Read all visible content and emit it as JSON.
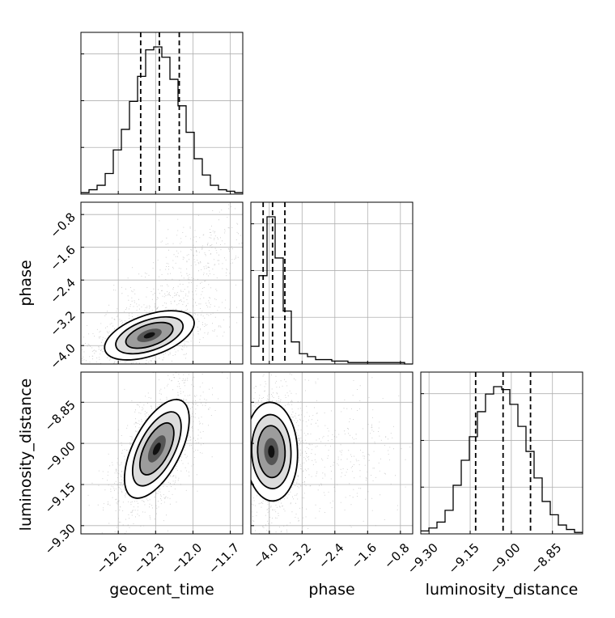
{
  "chart_data": {
    "type": "corner",
    "parameters": [
      "geocent_time",
      "phase",
      "luminosity_distance"
    ],
    "axis_labels": {
      "geocent_time": "geocent_time",
      "phase": "phase",
      "luminosity_distance": "luminosity_distance"
    },
    "ranges": {
      "geocent_time": [
        -12.9,
        -11.6
      ],
      "phase": [
        -4.45,
        -0.5
      ],
      "luminosity_distance": [
        -9.33,
        -8.74
      ]
    },
    "ticks": {
      "geocent_time": [
        "-12.6",
        "-12.3",
        "-12.0",
        "-11.7"
      ],
      "phase": [
        "-4.0",
        "-3.2",
        "-2.4",
        "-1.6",
        "-0.8"
      ],
      "luminosity_distance": [
        "-9.30",
        "-9.15",
        "-9.00",
        "-8.85"
      ]
    },
    "quantiles": {
      "geocent_time": [
        -12.42,
        -12.27,
        -12.11
      ],
      "phase": [
        -4.15,
        -3.92,
        -3.62
      ],
      "luminosity_distance": [
        -9.13,
        -9.03,
        -8.93
      ]
    },
    "histograms": {
      "geocent_time": {
        "bin_edges": [
          -12.9,
          -12.835,
          -12.77,
          -12.705,
          -12.64,
          -12.575,
          -12.51,
          -12.445,
          -12.38,
          -12.315,
          -12.25,
          -12.185,
          -12.12,
          -12.055,
          -11.99,
          -11.925,
          -11.86,
          -11.795,
          -11.73,
          -11.665,
          -11.6
        ],
        "counts": [
          1,
          3,
          6,
          14,
          30,
          44,
          63,
          80,
          98,
          100,
          93,
          78,
          60,
          42,
          24,
          13,
          6,
          3,
          2,
          1
        ]
      },
      "phase": {
        "bin_edges": [
          -4.45,
          -4.2525,
          -4.055,
          -3.8575,
          -3.66,
          -3.4625,
          -3.265,
          -3.0675,
          -2.87,
          -2.6725,
          -2.475,
          -2.2775,
          -2.08,
          -1.8825,
          -1.685,
          -1.4875,
          -1.29,
          -1.0925,
          -0.895,
          -0.6975,
          -0.5
        ],
        "counts": [
          12,
          60,
          100,
          72,
          36,
          15,
          7,
          5,
          3,
          3,
          2,
          2,
          1,
          1,
          1,
          1,
          1,
          1,
          1,
          0
        ]
      },
      "luminosity_distance": {
        "bin_edges": [
          -9.33,
          -9.3005,
          -9.271,
          -9.2415,
          -9.212,
          -9.1825,
          -9.153,
          -9.1235,
          -9.094,
          -9.0645,
          -9.035,
          -9.0055,
          -8.976,
          -8.9465,
          -8.917,
          -8.8875,
          -8.858,
          -8.8285,
          -8.799,
          -8.7695,
          -8.74
        ],
        "counts": [
          2,
          4,
          8,
          16,
          33,
          50,
          66,
          83,
          95,
          100,
          98,
          88,
          73,
          56,
          38,
          22,
          13,
          6,
          3,
          1
        ]
      }
    },
    "densities": {
      "phase_vs_geocent_time": {
        "x": "geocent_time",
        "y": "phase",
        "mean": [
          -12.35,
          -3.75
        ],
        "sd": [
          0.18,
          0.3
        ],
        "corr": 0.5
      },
      "luminosity_distance_vs_geocent_time": {
        "x": "geocent_time",
        "y": "luminosity_distance",
        "mean": [
          -12.29,
          -9.02
        ],
        "sd": [
          0.13,
          0.09
        ],
        "corr": 0.6
      },
      "luminosity_distance_vs_phase": {
        "x": "phase",
        "y": "luminosity_distance",
        "mean": [
          -3.95,
          -9.03
        ],
        "sd": [
          0.32,
          0.09
        ],
        "corr": -0.05
      }
    },
    "grid": true
  }
}
